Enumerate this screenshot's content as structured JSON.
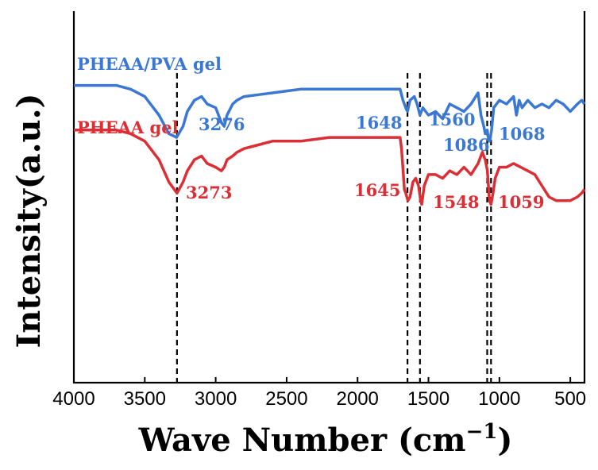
{
  "chart_data": {
    "type": "line",
    "title": "",
    "xlabel": "Wave Number (cm",
    "xlabel_sup": "−1",
    "xlabel_close": ")",
    "ylabel": "Intensity(a.u.)",
    "xlim": [
      4000,
      400
    ],
    "x_reversed": true,
    "y_ticks_shown": false,
    "grid": false,
    "x_ticks": [
      4000,
      3500,
      3000,
      2500,
      2000,
      1500,
      1000,
      500
    ],
    "x_tick_labels": [
      "4000",
      "3500",
      "3000",
      "2500",
      "2000",
      "1500",
      "1000",
      "500"
    ],
    "series": [
      {
        "name": "PHEAA/PVA gel",
        "color": "#3a78d4",
        "label_color": "#3a78d4",
        "x": [
          4000,
          3700,
          3600,
          3500,
          3400,
          3330,
          3276,
          3230,
          3200,
          3150,
          3100,
          3060,
          3000,
          2960,
          2940,
          2920,
          2880,
          2850,
          2800,
          2700,
          2600,
          2500,
          2400,
          2300,
          2200,
          2100,
          2000,
          1900,
          1800,
          1700,
          1680,
          1660,
          1648,
          1630,
          1600,
          1580,
          1560,
          1540,
          1500,
          1450,
          1400,
          1350,
          1300,
          1250,
          1200,
          1150,
          1130,
          1110,
          1100,
          1086,
          1075,
          1068,
          1055,
          1040,
          1000,
          950,
          900,
          880,
          860,
          840,
          800,
          750,
          700,
          650,
          600,
          550,
          500,
          450,
          420,
          400
        ],
        "y": [
          0.8,
          0.8,
          0.79,
          0.77,
          0.72,
          0.67,
          0.66,
          0.69,
          0.73,
          0.76,
          0.77,
          0.75,
          0.74,
          0.7,
          0.69,
          0.72,
          0.75,
          0.76,
          0.77,
          0.775,
          0.78,
          0.785,
          0.79,
          0.79,
          0.79,
          0.79,
          0.79,
          0.79,
          0.79,
          0.79,
          0.76,
          0.74,
          0.73,
          0.76,
          0.77,
          0.75,
          0.72,
          0.74,
          0.72,
          0.73,
          0.71,
          0.75,
          0.74,
          0.73,
          0.75,
          0.78,
          0.72,
          0.69,
          0.67,
          0.68,
          0.65,
          0.65,
          0.68,
          0.74,
          0.76,
          0.75,
          0.77,
          0.72,
          0.76,
          0.74,
          0.76,
          0.74,
          0.75,
          0.74,
          0.76,
          0.75,
          0.73,
          0.75,
          0.76,
          0.75
        ]
      },
      {
        "name": "PHEAA gel",
        "color": "#dc2f35",
        "label_color": "#dc2f35",
        "x": [
          4000,
          3700,
          3600,
          3500,
          3400,
          3330,
          3273,
          3230,
          3200,
          3150,
          3100,
          3060,
          3000,
          2960,
          2940,
          2920,
          2880,
          2850,
          2800,
          2700,
          2600,
          2500,
          2400,
          2300,
          2200,
          2100,
          2000,
          1900,
          1800,
          1700,
          1690,
          1670,
          1660,
          1645,
          1630,
          1610,
          1590,
          1570,
          1555,
          1548,
          1530,
          1500,
          1450,
          1400,
          1350,
          1300,
          1250,
          1200,
          1150,
          1120,
          1100,
          1085,
          1070,
          1059,
          1045,
          1030,
          1000,
          950,
          900,
          850,
          800,
          750,
          700,
          650,
          600,
          550,
          500,
          450,
          420,
          400
        ],
        "y": [
          0.68,
          0.68,
          0.67,
          0.65,
          0.6,
          0.54,
          0.51,
          0.54,
          0.57,
          0.6,
          0.61,
          0.59,
          0.58,
          0.57,
          0.58,
          0.6,
          0.61,
          0.62,
          0.63,
          0.64,
          0.65,
          0.65,
          0.65,
          0.655,
          0.66,
          0.66,
          0.66,
          0.66,
          0.66,
          0.66,
          0.63,
          0.52,
          0.51,
          0.49,
          0.5,
          0.54,
          0.55,
          0.53,
          0.49,
          0.48,
          0.53,
          0.56,
          0.56,
          0.55,
          0.57,
          0.56,
          0.58,
          0.56,
          0.59,
          0.62,
          0.6,
          0.57,
          0.49,
          0.48,
          0.51,
          0.55,
          0.58,
          0.58,
          0.59,
          0.58,
          0.57,
          0.56,
          0.53,
          0.5,
          0.49,
          0.49,
          0.49,
          0.5,
          0.51,
          0.52
        ]
      }
    ],
    "reference_lines_x": [
      3273,
      1648,
      1560,
      1086,
      1059
    ],
    "annotations": [
      {
        "text": "PHEAA/PVA gel",
        "series": 0,
        "kind": "series"
      },
      {
        "text": "PHEAA gel",
        "series": 1,
        "kind": "series"
      },
      {
        "text": "3276",
        "series": 0,
        "kind": "peak"
      },
      {
        "text": "1648",
        "series": 0,
        "kind": "peak"
      },
      {
        "text": "1560",
        "series": 0,
        "kind": "peak"
      },
      {
        "text": "1086",
        "series": 0,
        "kind": "peak"
      },
      {
        "text": "1068",
        "series": 0,
        "kind": "peak"
      },
      {
        "text": "3273",
        "series": 1,
        "kind": "peak"
      },
      {
        "text": "1645",
        "series": 1,
        "kind": "peak"
      },
      {
        "text": "1548",
        "series": 1,
        "kind": "peak"
      },
      {
        "text": "1059",
        "series": 1,
        "kind": "peak"
      }
    ]
  }
}
